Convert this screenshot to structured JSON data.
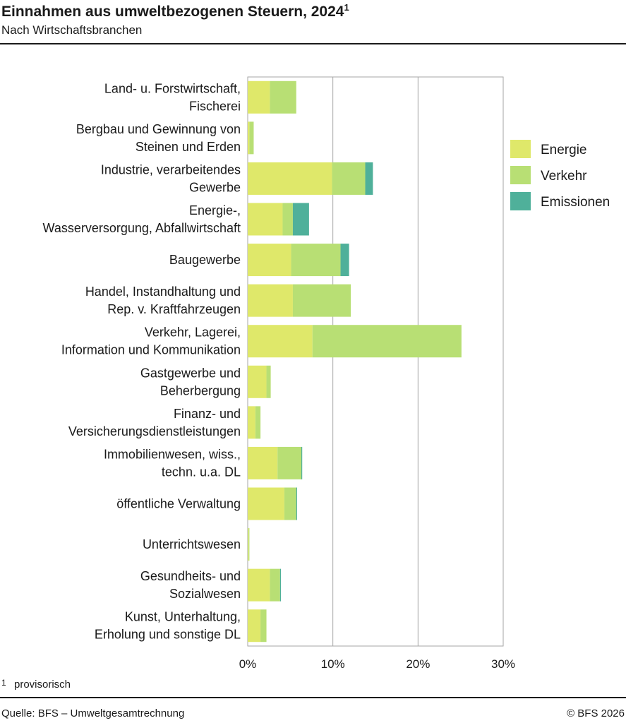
{
  "header": {
    "title": "Einnahmen aus umweltbezogenen Steuern, 2024",
    "title_footnote_mark": "1",
    "subtitle": "Nach Wirtschaftsbranchen"
  },
  "footer": {
    "footnote_mark": "1",
    "footnote_text": "provisorisch",
    "source": "Quelle: BFS – Umweltgesamtrechnung",
    "copyright": "© BFS 2026"
  },
  "colors": {
    "Energie": "#dfe86a",
    "Verkehr": "#b8df74",
    "Emissionen": "#4fb09a"
  },
  "chart_data": {
    "type": "bar",
    "orientation": "horizontal",
    "stacked": true,
    "categories": [
      [
        "Land- u. Forstwirtschaft,",
        "Fischerei"
      ],
      [
        "Bergbau und Gewinnung von",
        "Steinen und Erden"
      ],
      [
        "Industrie, verarbeitendes",
        "Gewerbe"
      ],
      [
        "Energie-,",
        "Wasserversorgung, Abfallwirtschaft"
      ],
      [
        "Baugewerbe"
      ],
      [
        "Handel, Instandhaltung und",
        "Rep. v. Kraftfahrzeugen"
      ],
      [
        "Verkehr, Lagerei,",
        "Information und Kommunikation"
      ],
      [
        "Gastgewerbe und",
        "Beherbergung"
      ],
      [
        "Finanz- und",
        "Versicherungsdienstleistungen"
      ],
      [
        "Immobilienwesen, wiss.,",
        "techn. u.a. DL"
      ],
      [
        "öffentliche Verwaltung"
      ],
      [
        "Unterrichtswesen"
      ],
      [
        "Gesundheits- und",
        "Sozialwesen"
      ],
      [
        "Kunst, Unterhaltung,",
        "Erholung und sonstige DL"
      ]
    ],
    "series": [
      {
        "name": "Energie",
        "values": [
          2.6,
          0.2,
          9.9,
          4.1,
          5.1,
          5.3,
          7.6,
          2.2,
          0.9,
          3.5,
          4.3,
          0.1,
          2.6,
          1.5
        ]
      },
      {
        "name": "Verkehr",
        "values": [
          3.1,
          0.5,
          3.9,
          1.2,
          5.8,
          6.8,
          17.5,
          0.5,
          0.6,
          2.8,
          1.4,
          0.1,
          1.2,
          0.7
        ]
      },
      {
        "name": "Emissionen",
        "values": [
          0.0,
          0.0,
          0.9,
          1.9,
          1.0,
          0.0,
          0.0,
          0.0,
          0.0,
          0.1,
          0.1,
          0.0,
          0.1,
          0.0
        ]
      }
    ],
    "xlim": [
      0,
      30
    ],
    "xticks": [
      0,
      10,
      20,
      30
    ],
    "tick_suffix": "%",
    "grid": true,
    "legend": "right"
  }
}
